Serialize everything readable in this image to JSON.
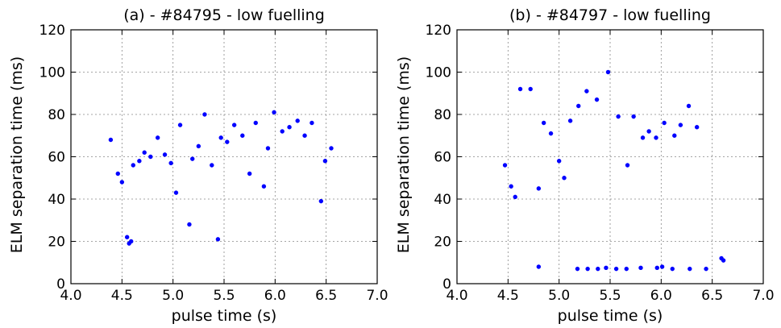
{
  "chart_data": [
    {
      "type": "scatter",
      "title": "(a) - #84795 - low fuelling",
      "xlabel": "pulse time (s)",
      "ylabel": "ELM separation time (ms)",
      "xlim": [
        4.0,
        7.0
      ],
      "ylim": [
        0,
        120
      ],
      "xticks": [
        "4.0",
        "4.5",
        "5.0",
        "5.5",
        "6.0",
        "6.5",
        "7.0"
      ],
      "yticks": [
        "0",
        "20",
        "40",
        "60",
        "80",
        "100",
        "120"
      ],
      "grid": true,
      "marker_color": "#0000ff",
      "series": [
        {
          "points": [
            [
              4.39,
              68
            ],
            [
              4.46,
              52
            ],
            [
              4.5,
              48
            ],
            [
              4.55,
              22
            ],
            [
              4.57,
              19
            ],
            [
              4.59,
              20
            ],
            [
              4.61,
              56
            ],
            [
              4.67,
              58
            ],
            [
              4.72,
              62
            ],
            [
              4.78,
              60
            ],
            [
              4.85,
              69
            ],
            [
              4.92,
              61
            ],
            [
              4.98,
              57
            ],
            [
              5.03,
              43
            ],
            [
              5.07,
              75
            ],
            [
              5.16,
              28
            ],
            [
              5.19,
              59
            ],
            [
              5.25,
              65
            ],
            [
              5.31,
              80
            ],
            [
              5.38,
              56
            ],
            [
              5.44,
              21
            ],
            [
              5.47,
              69
            ],
            [
              5.53,
              67
            ],
            [
              5.6,
              75
            ],
            [
              5.68,
              70
            ],
            [
              5.75,
              52
            ],
            [
              5.81,
              76
            ],
            [
              5.89,
              46
            ],
            [
              5.93,
              64
            ],
            [
              5.99,
              81
            ],
            [
              6.07,
              72
            ],
            [
              6.14,
              74
            ],
            [
              6.22,
              77
            ],
            [
              6.29,
              70
            ],
            [
              6.36,
              76
            ],
            [
              6.45,
              39
            ],
            [
              6.49,
              58
            ],
            [
              6.55,
              64
            ]
          ]
        }
      ]
    },
    {
      "type": "scatter",
      "title": "(b) - #84797 - low fuelling",
      "xlabel": "pulse time (s)",
      "ylabel": "ELM separation time (ms)",
      "xlim": [
        4.0,
        7.0
      ],
      "ylim": [
        0,
        120
      ],
      "xticks": [
        "4.0",
        "4.5",
        "5.0",
        "5.5",
        "6.0",
        "6.5",
        "7.0"
      ],
      "yticks": [
        "0",
        "20",
        "40",
        "60",
        "80",
        "100",
        "120"
      ],
      "grid": true,
      "marker_color": "#0000ff",
      "series": [
        {
          "points": [
            [
              4.47,
              56
            ],
            [
              4.53,
              46
            ],
            [
              4.57,
              41
            ],
            [
              4.62,
              92
            ],
            [
              4.72,
              92
            ],
            [
              4.8,
              45
            ],
            [
              4.8,
              8
            ],
            [
              4.85,
              76
            ],
            [
              4.92,
              71
            ],
            [
              5.0,
              58
            ],
            [
              5.05,
              50
            ],
            [
              5.11,
              77
            ],
            [
              5.18,
              7
            ],
            [
              5.19,
              84
            ],
            [
              5.27,
              91
            ],
            [
              5.28,
              7
            ],
            [
              5.37,
              87
            ],
            [
              5.38,
              7
            ],
            [
              5.46,
              7.5
            ],
            [
              5.48,
              100
            ],
            [
              5.56,
              7
            ],
            [
              5.58,
              79
            ],
            [
              5.66,
              7
            ],
            [
              5.67,
              56
            ],
            [
              5.73,
              79
            ],
            [
              5.8,
              7.5
            ],
            [
              5.82,
              69
            ],
            [
              5.88,
              72
            ],
            [
              5.95,
              69
            ],
            [
              5.96,
              7.5
            ],
            [
              6.01,
              8
            ],
            [
              6.03,
              76
            ],
            [
              6.11,
              7
            ],
            [
              6.13,
              70
            ],
            [
              6.19,
              75
            ],
            [
              6.27,
              84
            ],
            [
              6.28,
              7
            ],
            [
              6.35,
              74
            ],
            [
              6.44,
              7
            ],
            [
              6.59,
              12
            ],
            [
              6.61,
              11
            ]
          ]
        }
      ]
    }
  ]
}
